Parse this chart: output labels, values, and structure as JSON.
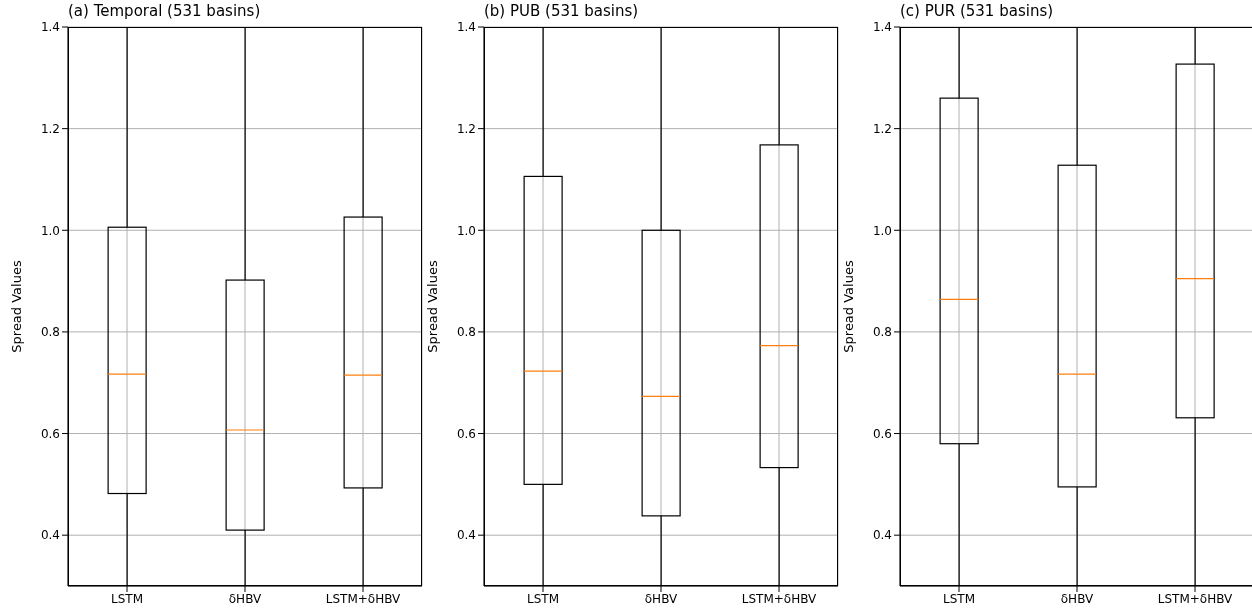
{
  "chart_data": [
    {
      "type": "box",
      "title": "(a) Temporal (531 basins)",
      "ylabel": "Spread Values",
      "categories": [
        "LSTM",
        "δHBV",
        "LSTM+δHBV"
      ],
      "color": "#000000",
      "grid": true,
      "ylim": [
        0.3,
        1.4
      ],
      "yticks": [
        {
          "value": 0.4,
          "label": "0.4"
        },
        {
          "value": 0.6,
          "label": "0.6"
        },
        {
          "value": 0.8,
          "label": "0.8"
        },
        {
          "value": 1,
          "label": "1.0"
        },
        {
          "value": 1.2,
          "label": "1.2"
        },
        {
          "value": 1.4,
          "label": "1.4"
        }
      ],
      "boxes": [
        {
          "low": 0.3,
          "q1": 0.482,
          "median": 0.717,
          "q3": 1.006,
          "high": 1.4
        },
        {
          "low": 0.3,
          "q1": 0.41,
          "median": 0.607,
          "q3": 0.902,
          "high": 1.4
        },
        {
          "low": 0.3,
          "q1": 0.493,
          "median": 0.715,
          "q3": 1.026,
          "high": 1.4
        }
      ]
    },
    {
      "type": "box",
      "title": "(b) PUB (531 basins)",
      "ylabel": "Spread Values",
      "categories": [
        "LSTM",
        "δHBV",
        "LSTM+δHBV"
      ],
      "color": "#000000",
      "grid": true,
      "ylim": [
        0.3,
        1.4
      ],
      "yticks": [
        {
          "value": 0.4,
          "label": "0.4"
        },
        {
          "value": 0.6,
          "label": "0.6"
        },
        {
          "value": 0.8,
          "label": "0.8"
        },
        {
          "value": 1,
          "label": "1.0"
        },
        {
          "value": 1.2,
          "label": "1.2"
        },
        {
          "value": 1.4,
          "label": "1.4"
        }
      ],
      "boxes": [
        {
          "low": 0.3,
          "q1": 0.5,
          "median": 0.723,
          "q3": 1.106,
          "high": 1.4
        },
        {
          "low": 0.3,
          "q1": 0.438,
          "median": 0.673,
          "q3": 1.0,
          "high": 1.4
        },
        {
          "low": 0.3,
          "q1": 0.533,
          "median": 0.773,
          "q3": 1.168,
          "high": 1.4
        }
      ]
    },
    {
      "type": "box",
      "title": "(c) PUR (531 basins)",
      "ylabel": "Spread Values",
      "categories": [
        "LSTM",
        "δHBV",
        "LSTM+δHBV"
      ],
      "color": "#000000",
      "grid": true,
      "ylim": [
        0.3,
        1.4
      ],
      "yticks": [
        {
          "value": 0.4,
          "label": "0.4"
        },
        {
          "value": 0.6,
          "label": "0.6"
        },
        {
          "value": 0.8,
          "label": "0.8"
        },
        {
          "value": 1,
          "label": "1.0"
        },
        {
          "value": 1.2,
          "label": "1.2"
        },
        {
          "value": 1.4,
          "label": "1.4"
        }
      ],
      "boxes": [
        {
          "low": 0.3,
          "q1": 0.58,
          "median": 0.864,
          "q3": 1.26,
          "high": 1.4
        },
        {
          "low": 0.3,
          "q1": 0.495,
          "median": 0.717,
          "q3": 1.128,
          "high": 1.4
        },
        {
          "low": 0.3,
          "q1": 0.631,
          "median": 0.905,
          "q3": 1.327,
          "high": 1.4
        }
      ]
    }
  ]
}
